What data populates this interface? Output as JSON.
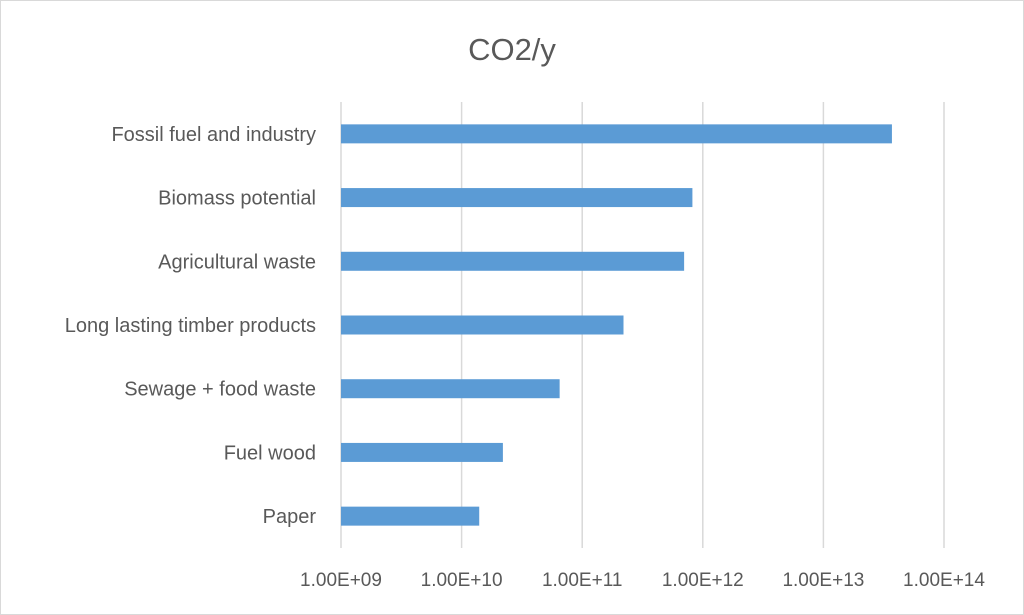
{
  "chart_data": {
    "type": "bar",
    "orientation": "horizontal",
    "title": "CO2/y",
    "xlabel": "",
    "ylabel": "",
    "x_scale": "log",
    "xlim": [
      1000000000.0,
      100000000000000.0
    ],
    "x_ticks": [
      "1.00E+09",
      "1.00E+10",
      "1.00E+11",
      "1.00E+12",
      "1.00E+13",
      "1.00E+14"
    ],
    "grid": true,
    "legend": "none",
    "bar_color": "#5b9bd5",
    "categories": [
      "Fossil fuel and industry",
      "Biomass potential",
      "Agricultural waste",
      "Long lasting timber products",
      "Sewage + food waste",
      "Fuel wood",
      "Paper"
    ],
    "values": [
      37000000000000.0,
      820000000000.0,
      700000000000.0,
      220000000000.0,
      65000000000.0,
      22000000000.0,
      14000000000.0
    ]
  }
}
